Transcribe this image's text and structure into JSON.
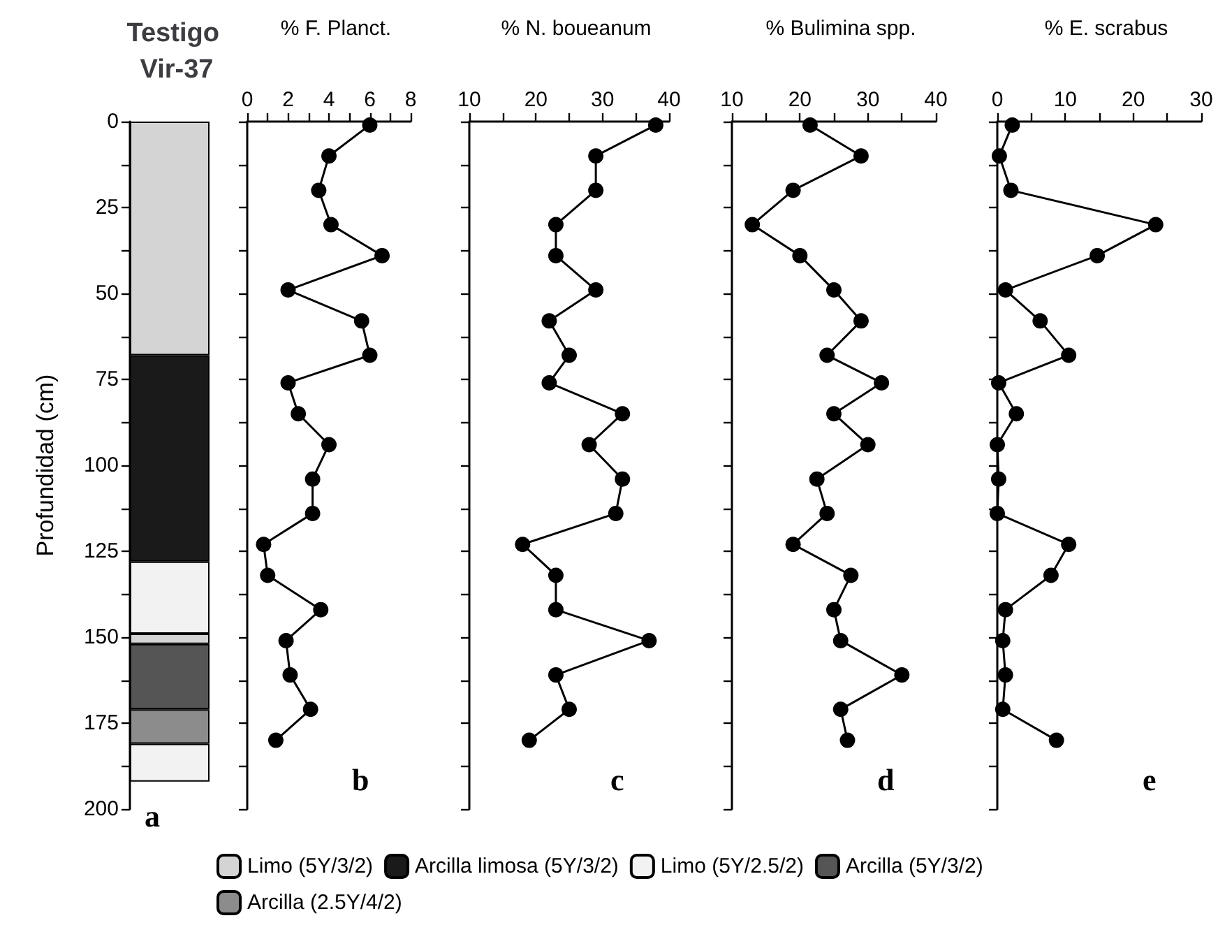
{
  "chart_data": [
    {
      "type": "bar",
      "title": "Testigo Vir-37",
      "ylabel": "Profundidad (cm)",
      "categories": [
        null
      ],
      "stacked": true,
      "legend": "bottom",
      "tick_labels": "y",
      "annotations": [
        "a"
      ],
      "ylim": [
        200,
        0
      ],
      "yticks": [
        0,
        {
          "value": 12.5,
          "label": null
        },
        25,
        {
          "value": 37.5,
          "label": null
        },
        50,
        {
          "value": 62.5,
          "label": null
        },
        75,
        {
          "value": 87.5,
          "label": null
        },
        100,
        {
          "value": 112.5,
          "label": null
        },
        125,
        {
          "value": 137.5,
          "label": null
        },
        150,
        {
          "value": 162.5,
          "label": null
        },
        175,
        {
          "value": 187.5,
          "label": null
        },
        200
      ],
      "series": [
        {
          "name": "Limo (5Y/3/2)",
          "color": "#d4d4d4",
          "values": [
            68
          ]
        },
        {
          "name": "Arcilla limosa (5Y/3/2)",
          "color": "#1a1a1a",
          "values": [
            60
          ]
        },
        {
          "name": "Limo (5Y/2.5/2)",
          "color": "#f2f2f2",
          "values": [
            21
          ]
        },
        {
          "color": "#d4d4d4",
          "values": [
            3
          ]
        },
        {
          "name": "Arcilla (5Y/3/2)",
          "color": "#555555",
          "values": [
            19
          ]
        },
        {
          "name": "Arcilla (2.5Y/4/2)",
          "color": "#8c8c8c",
          "values": [
            10
          ]
        },
        {
          "color": "#f2f2f2",
          "values": [
            11
          ]
        }
      ]
    },
    {
      "type": "line",
      "title": "% F. Planct.",
      "marker": "circle",
      "line_style": "solid",
      "tick_labels": "x",
      "annotations": [
        "b"
      ],
      "xlim": [
        0,
        8
      ],
      "xticks": [
        0,
        {
          "value": 1,
          "label": null
        },
        2,
        {
          "value": 3,
          "label": null
        },
        4,
        {
          "value": 5,
          "label": null
        },
        6,
        {
          "value": 7,
          "label": null
        },
        8
      ],
      "ylim": [
        200,
        0
      ],
      "yticks": [
        0,
        {
          "value": 12.5,
          "label": null
        },
        25,
        {
          "value": 37.5,
          "label": null
        },
        50,
        {
          "value": 62.5,
          "label": null
        },
        75,
        {
          "value": 87.5,
          "label": null
        },
        100,
        {
          "value": 112.5,
          "label": null
        },
        125,
        {
          "value": 137.5,
          "label": null
        },
        150,
        {
          "value": 162.5,
          "label": null
        },
        175,
        {
          "value": 187.5,
          "label": null
        },
        200
      ],
      "series": [
        {
          "color": "#000000",
          "x": [
            6.0,
            4.0,
            3.5,
            4.1,
            6.6,
            2.0,
            5.6,
            6.0,
            2.0,
            2.5,
            4.0,
            3.2,
            3.2,
            0.8,
            1.0,
            3.6,
            1.9,
            2.1,
            3.1,
            1.4
          ],
          "values": [
            1,
            10,
            20,
            30,
            39,
            49,
            58,
            68,
            76,
            85,
            94,
            104,
            114,
            123,
            132,
            142,
            151,
            161,
            171,
            180
          ]
        }
      ]
    },
    {
      "type": "line",
      "title": "% N. boueanum",
      "marker": "circle",
      "line_style": "solid",
      "tick_labels": "x",
      "annotations": [
        "c"
      ],
      "xlim": [
        10,
        40
      ],
      "xticks": [
        10,
        {
          "value": 15,
          "label": null
        },
        20,
        {
          "value": 25,
          "label": null
        },
        30,
        {
          "value": 35,
          "label": null
        },
        40
      ],
      "ylim": [
        200,
        0
      ],
      "yticks": [
        0,
        {
          "value": 12.5,
          "label": null
        },
        25,
        {
          "value": 37.5,
          "label": null
        },
        50,
        {
          "value": 62.5,
          "label": null
        },
        75,
        {
          "value": 87.5,
          "label": null
        },
        100,
        {
          "value": 112.5,
          "label": null
        },
        125,
        {
          "value": 137.5,
          "label": null
        },
        150,
        {
          "value": 162.5,
          "label": null
        },
        175,
        {
          "value": 187.5,
          "label": null
        },
        200
      ],
      "series": [
        {
          "color": "#000000",
          "x": [
            38,
            29,
            29,
            23,
            23,
            29,
            22,
            25,
            22,
            33,
            28,
            33,
            32,
            18,
            23,
            23,
            37,
            23,
            25,
            19
          ],
          "values": [
            1,
            10,
            20,
            30,
            39,
            49,
            58,
            68,
            76,
            85,
            94,
            104,
            114,
            123,
            132,
            142,
            151,
            161,
            171,
            180
          ]
        }
      ]
    },
    {
      "type": "line",
      "title": "% Bulimina spp.",
      "marker": "circle",
      "line_style": "solid",
      "tick_labels": "x",
      "annotations": [
        "d"
      ],
      "xlim": [
        10,
        40
      ],
      "xticks": [
        10,
        {
          "value": 15,
          "label": null
        },
        20,
        {
          "value": 25,
          "label": null
        },
        30,
        {
          "value": 35,
          "label": null
        },
        40
      ],
      "ylim": [
        200,
        0
      ],
      "yticks": [
        0,
        {
          "value": 12.5,
          "label": null
        },
        25,
        {
          "value": 37.5,
          "label": null
        },
        50,
        {
          "value": 62.5,
          "label": null
        },
        75,
        {
          "value": 87.5,
          "label": null
        },
        100,
        {
          "value": 112.5,
          "label": null
        },
        125,
        {
          "value": 137.5,
          "label": null
        },
        150,
        {
          "value": 162.5,
          "label": null
        },
        175,
        {
          "value": 187.5,
          "label": null
        },
        200
      ],
      "series": [
        {
          "color": "#000000",
          "x": [
            21.5,
            29,
            19,
            13,
            20,
            25,
            29,
            24,
            32,
            25,
            30,
            22.5,
            24,
            19,
            27.5,
            25,
            26,
            35,
            26,
            27
          ],
          "values": [
            1,
            10,
            20,
            30,
            39,
            49,
            58,
            68,
            76,
            85,
            94,
            104,
            114,
            123,
            132,
            142,
            151,
            161,
            171,
            180
          ]
        }
      ]
    },
    {
      "type": "line",
      "title": "% E. scrabus",
      "marker": "circle",
      "line_style": "solid",
      "tick_labels": "x",
      "annotations": [
        "e"
      ],
      "xlim": [
        0,
        30
      ],
      "xticks": [
        0,
        {
          "value": 5,
          "label": null
        },
        10,
        {
          "value": 15,
          "label": null
        },
        20,
        {
          "value": 25,
          "label": null
        },
        30
      ],
      "ylim": [
        200,
        0
      ],
      "yticks": [
        0,
        {
          "value": 12.5,
          "label": null
        },
        25,
        {
          "value": 37.5,
          "label": null
        },
        50,
        {
          "value": 62.5,
          "label": null
        },
        75,
        {
          "value": 87.5,
          "label": null
        },
        100,
        {
          "value": 112.5,
          "label": null
        },
        125,
        {
          "value": 137.5,
          "label": null
        },
        150,
        {
          "value": 162.5,
          "label": null
        },
        175,
        {
          "value": 187.5,
          "label": null
        },
        200
      ],
      "series": [
        {
          "color": "#000000",
          "x": [
            2.2,
            0.3,
            2,
            23.3,
            14.7,
            1.2,
            6.3,
            10.5,
            0.2,
            2.8,
            0,
            0.2,
            0,
            10.5,
            7.9,
            1.2,
            0.8,
            1.2,
            0.8,
            8.7
          ],
          "values": [
            1,
            10,
            20,
            30,
            39,
            49,
            58,
            68,
            76,
            85,
            94,
            104,
            114,
            123,
            132,
            142,
            151,
            161,
            171,
            180
          ]
        }
      ]
    }
  ]
}
